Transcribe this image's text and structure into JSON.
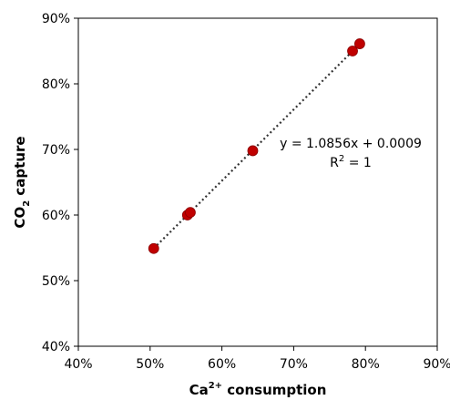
{
  "chart_data": {
    "type": "scatter",
    "xlabel_main": "Ca",
    "xlabel_sup": "2+",
    "xlabel_rest": " consumption",
    "ylabel_main": "CO",
    "ylabel_sub": "2",
    "ylabel_rest": " capture",
    "xlim": [
      0.4,
      0.9
    ],
    "ylim": [
      0.4,
      0.9
    ],
    "x_ticks": [
      0.4,
      0.5,
      0.6,
      0.7,
      0.8,
      0.9
    ],
    "y_ticks": [
      0.4,
      0.5,
      0.6,
      0.7,
      0.8,
      0.9
    ],
    "x_tick_labels": [
      "40%",
      "50%",
      "60%",
      "70%",
      "80%",
      "90%"
    ],
    "y_tick_labels": [
      "40%",
      "50%",
      "60%",
      "70%",
      "80%",
      "90%"
    ],
    "grid": false,
    "points": [
      {
        "x": 0.505,
        "y": 0.549
      },
      {
        "x": 0.552,
        "y": 0.6
      },
      {
        "x": 0.556,
        "y": 0.604
      },
      {
        "x": 0.643,
        "y": 0.698
      },
      {
        "x": 0.782,
        "y": 0.85
      },
      {
        "x": 0.792,
        "y": 0.861
      }
    ],
    "trendline": {
      "slope": 1.0856,
      "intercept": 0.0009,
      "x_start": 0.505,
      "x_end": 0.792
    },
    "equation_text": "y = 1.0856x + 0.0009",
    "r2_main": "R",
    "r2_sup": "2",
    "r2_rest": " = 1",
    "marker_color": "#c00000",
    "trendline_color": "#333333"
  }
}
